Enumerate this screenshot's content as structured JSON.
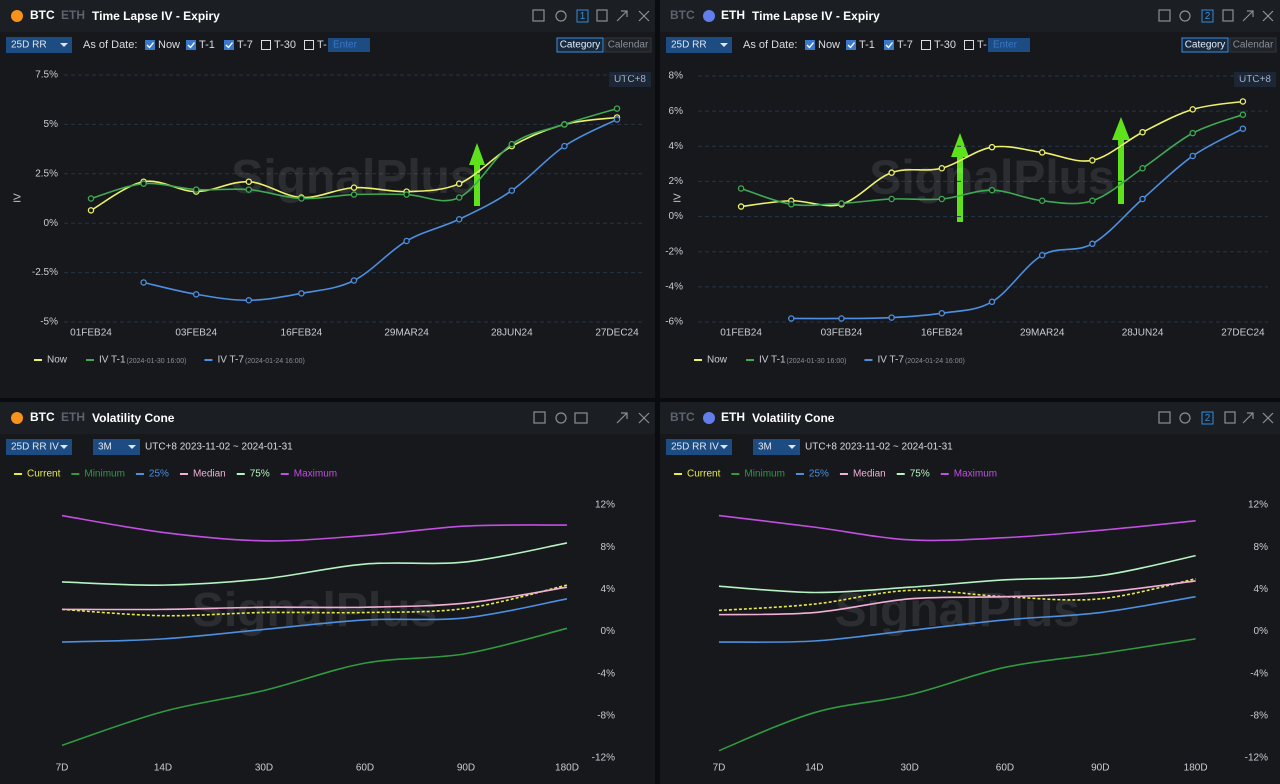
{
  "panels": [
    {
      "coins": [
        "BTC",
        "ETH"
      ],
      "active_coin": 0,
      "title": "Time Lapse IV - Expiry",
      "badge": "1",
      "controls": {
        "metric": "25D RR",
        "as_of_label": "As of Date:",
        "options": [
          "Now",
          "T-1",
          "T-7",
          "T-30",
          "T-"
        ],
        "checked": [
          true,
          true,
          true,
          false,
          false
        ],
        "input_placeholder": "Enter",
        "views": [
          "Category",
          "Calendar"
        ],
        "active_view": 0
      },
      "timezone": "UTC+8",
      "watermark": "SignalPlus"
    },
    {
      "coins": [
        "BTC",
        "ETH"
      ],
      "active_coin": 1,
      "title": "Time Lapse IV - Expiry",
      "badge": "2",
      "controls": {
        "metric": "25D RR",
        "as_of_label": "As of Date:",
        "options": [
          "Now",
          "T-1",
          "T-7",
          "T-30",
          "T-"
        ],
        "checked": [
          true,
          true,
          true,
          false,
          false
        ],
        "input_placeholder": "Enter",
        "views": [
          "Category",
          "Calendar"
        ],
        "active_view": 0
      },
      "timezone": "UTC+8",
      "watermark": "SignalPlus"
    },
    {
      "coins": [
        "BTC",
        "ETH"
      ],
      "active_coin": 0,
      "title": "Volatility Cone",
      "controls": {
        "metric": "25D RR IV",
        "window": "3M",
        "range": "UTC+8 2023-11-02 ~ 2024-01-31"
      },
      "watermark": "SignalPlus"
    },
    {
      "coins": [
        "BTC",
        "ETH"
      ],
      "active_coin": 1,
      "title": "Volatility Cone",
      "badge": "2",
      "controls": {
        "metric": "25D RR IV",
        "window": "3M",
        "range": "UTC+8 2023-11-02 ~ 2024-01-31"
      },
      "watermark": "SignalPlus"
    }
  ],
  "chart_data": [
    {
      "type": "line",
      "ylabel": "IV",
      "smooth": true,
      "markers": true,
      "grid": true,
      "legend": "bottom",
      "legend_colored_text": false,
      "categories": [
        "01FEB24",
        null,
        "03FEB24",
        null,
        "16FEB24",
        null,
        "29MAR24",
        null,
        "28JUN24",
        null,
        "27DEC24"
      ],
      "ylim": [
        -5,
        7.5
      ],
      "yticks": [
        {
          "value": 7.5,
          "label": "7.5%"
        },
        {
          "value": 5,
          "label": "5%"
        },
        {
          "value": 2.5,
          "label": "2.5%"
        },
        {
          "value": 0,
          "label": "0%"
        },
        {
          "value": -2.5,
          "label": "-2.5%"
        },
        {
          "value": -5,
          "label": "-5%"
        }
      ],
      "series": [
        {
          "name": "Now",
          "color": "#eef26a",
          "values": [
            0.65,
            2.1,
            1.6,
            2.1,
            1.3,
            1.8,
            1.6,
            2.0,
            3.9,
            5.0,
            5.35
          ]
        },
        {
          "name": "IV T-1",
          "note": "(2024-01-30 16:00)",
          "color": "#3faa52",
          "values": [
            1.25,
            2.0,
            1.7,
            1.7,
            1.25,
            1.45,
            1.45,
            1.3,
            4.0,
            5.0,
            5.8
          ]
        },
        {
          "name": "IV T-7",
          "note": "(2024-01-24 16:00)",
          "color": "#4d8fe0",
          "values": [
            null,
            -3.0,
            -3.6,
            -3.9,
            -3.55,
            -2.9,
            -0.9,
            0.2,
            1.65,
            3.9,
            5.25
          ]
        }
      ]
    },
    {
      "type": "line",
      "ylabel": "IV",
      "smooth": true,
      "markers": true,
      "grid": true,
      "legend": "bottom",
      "legend_colored_text": false,
      "categories": [
        "01FEB24",
        null,
        "03FEB24",
        null,
        "16FEB24",
        null,
        "29MAR24",
        null,
        "28JUN24",
        null,
        "27DEC24"
      ],
      "ylim": [
        -6,
        8
      ],
      "yticks": [
        {
          "value": 8,
          "label": "8%"
        },
        {
          "value": 6,
          "label": "6%"
        },
        {
          "value": 4,
          "label": "4%"
        },
        {
          "value": 2,
          "label": "2%"
        },
        {
          "value": 0,
          "label": "0%"
        },
        {
          "value": -2,
          "label": "-2%"
        },
        {
          "value": -4,
          "label": "-4%"
        },
        {
          "value": -6,
          "label": "-6%"
        }
      ],
      "series": [
        {
          "name": "Now",
          "color": "#eef26a",
          "values": [
            0.57,
            0.9,
            0.7,
            2.5,
            2.75,
            3.95,
            3.65,
            3.2,
            4.8,
            6.1,
            6.55
          ]
        },
        {
          "name": "IV T-1",
          "note": "(2024-01-30 16:00)",
          "color": "#3faa52",
          "values": [
            1.6,
            0.7,
            0.75,
            1.0,
            1.0,
            1.5,
            0.9,
            0.9,
            2.75,
            4.75,
            5.8
          ]
        },
        {
          "name": "IV T-7",
          "note": "(2024-01-24 16:00)",
          "color": "#4d8fe0",
          "values": [
            null,
            -5.8,
            -5.8,
            -5.75,
            -5.5,
            -4.85,
            -2.2,
            -1.55,
            1.0,
            3.45,
            5.0
          ]
        }
      ]
    },
    {
      "type": "line",
      "smooth": true,
      "markers": false,
      "grid": false,
      "legend": "top",
      "legend_colored_text": true,
      "categories": [
        "7D",
        "14D",
        "30D",
        "60D",
        "90D",
        "180D"
      ],
      "ylim": [
        -12,
        12
      ],
      "yticks": [
        {
          "value": 12,
          "label": "12%"
        },
        {
          "value": 8,
          "label": "8%"
        },
        {
          "value": 4,
          "label": "4%"
        },
        {
          "value": 0,
          "label": "0%"
        },
        {
          "value": -4,
          "label": "-4%"
        },
        {
          "value": -8,
          "label": "-8%"
        },
        {
          "value": -12,
          "label": "-12%"
        }
      ],
      "series": [
        {
          "name": "Current",
          "color": "#e6ea4a",
          "dash": true,
          "values": [
            2.1,
            1.5,
            1.8,
            1.8,
            2.2,
            4.4
          ]
        },
        {
          "name": "Minimum",
          "color": "#2f9a40",
          "values": [
            -10.8,
            -7.6,
            -5.6,
            -3.0,
            -2.1,
            0.3
          ]
        },
        {
          "name": "25%",
          "color": "#4d8fe0",
          "values": [
            -1.0,
            -0.7,
            0.2,
            1.1,
            1.3,
            3.1
          ]
        },
        {
          "name": "Median",
          "color": "#f2b0d6",
          "values": [
            2.1,
            2.1,
            2.3,
            2.3,
            2.7,
            4.2
          ]
        },
        {
          "name": "75%",
          "color": "#b6f2c2",
          "values": [
            4.7,
            4.4,
            5.0,
            6.4,
            6.6,
            8.4
          ]
        },
        {
          "name": "Maximum",
          "color": "#c24fe2",
          "values": [
            11.0,
            9.4,
            8.6,
            9.1,
            10.0,
            10.1
          ]
        }
      ]
    },
    {
      "type": "line",
      "smooth": true,
      "markers": false,
      "grid": false,
      "legend": "top",
      "legend_colored_text": true,
      "categories": [
        "7D",
        "14D",
        "30D",
        "60D",
        "90D",
        "180D"
      ],
      "ylim": [
        -12,
        12
      ],
      "yticks": [
        {
          "value": 12,
          "label": "12%"
        },
        {
          "value": 8,
          "label": "8%"
        },
        {
          "value": 4,
          "label": "4%"
        },
        {
          "value": 0,
          "label": "0%"
        },
        {
          "value": -4,
          "label": "-4%"
        },
        {
          "value": -8,
          "label": "-8%"
        },
        {
          "value": -12,
          "label": "-12%"
        }
      ],
      "series": [
        {
          "name": "Current",
          "color": "#e6ea4a",
          "dash": true,
          "values": [
            2.0,
            2.6,
            3.9,
            3.3,
            3.1,
            5.0
          ]
        },
        {
          "name": "Minimum",
          "color": "#2f9a40",
          "values": [
            -11.3,
            -7.7,
            -6.0,
            -3.4,
            -2.1,
            -0.7
          ]
        },
        {
          "name": "25%",
          "color": "#4d8fe0",
          "values": [
            -1.0,
            -0.9,
            0.1,
            1.1,
            1.8,
            3.3
          ]
        },
        {
          "name": "Median",
          "color": "#f2b0d6",
          "values": [
            1.6,
            1.8,
            3.1,
            3.3,
            3.7,
            4.8
          ]
        },
        {
          "name": "75%",
          "color": "#b6f2c2",
          "values": [
            4.3,
            3.7,
            4.2,
            4.9,
            5.3,
            7.2
          ]
        },
        {
          "name": "Maximum",
          "color": "#c24fe2",
          "values": [
            11.0,
            9.9,
            8.7,
            8.9,
            9.6,
            10.5
          ]
        }
      ]
    }
  ]
}
